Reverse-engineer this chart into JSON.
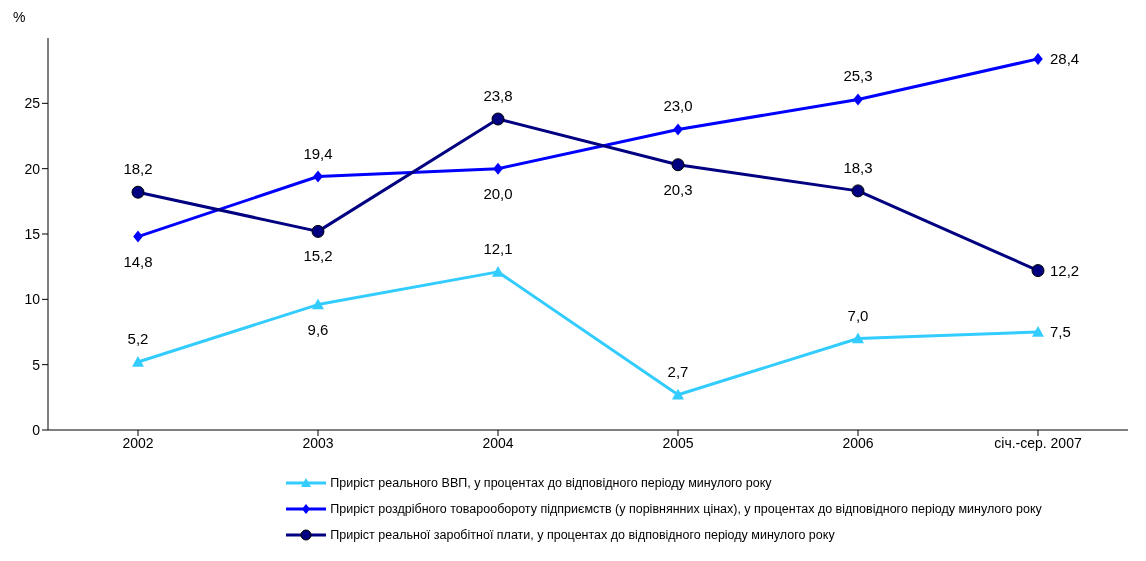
{
  "chart_data": {
    "type": "line",
    "ylabel": "%",
    "categories": [
      "2002",
      "2003",
      "2004",
      "2005",
      "2006",
      "січ.-сер. 2007"
    ],
    "series": [
      {
        "name": "Приріст реального ВВП, у процентах до відповідного періоду минулого року",
        "color": "#33ccff",
        "marker": "triangle",
        "values": [
          5.2,
          9.6,
          12.1,
          2.7,
          7.0,
          7.5
        ],
        "value_labels": [
          "5,2",
          "9,6",
          "12,1",
          "2,7",
          "7,0",
          "7,5"
        ]
      },
      {
        "name": "Приріст роздрібного товарообороту підприємств (у порівнянних цінах), у процентах до відповідного періоду минулого року",
        "color": "#0000ff",
        "marker": "diamond",
        "values": [
          14.8,
          19.4,
          20.0,
          23.0,
          25.3,
          28.4
        ],
        "value_labels": [
          "14,8",
          "19,4",
          "20,0",
          "23,0",
          "25,3",
          "28,4"
        ]
      },
      {
        "name": "Приріст реальної заробітної плати, у процентах до відповідного періоду минулого року",
        "color": "#000080",
        "marker": "circle",
        "values": [
          18.2,
          15.2,
          23.8,
          20.3,
          18.3,
          12.2
        ],
        "value_labels": [
          "18,2",
          "15,2",
          "23,8",
          "20,3",
          "18,3",
          "12,2"
        ]
      }
    ],
    "ylim": [
      0,
      30
    ],
    "yticks": [
      0,
      5,
      10,
      15,
      20,
      25
    ],
    "legend": "bottom"
  }
}
